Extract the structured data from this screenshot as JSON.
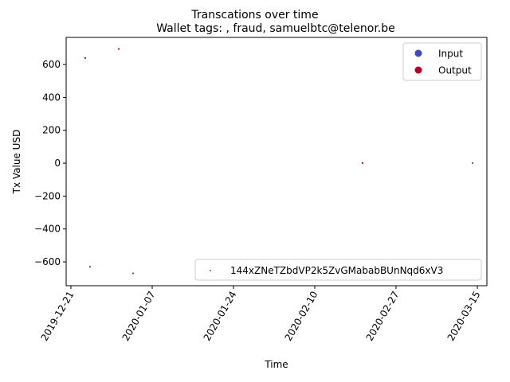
{
  "suptitle": "Transcations over time",
  "chart_data": {
    "type": "scatter",
    "title": "Wallet tags: , fraud, samuelbtc@telenor.be",
    "xlabel": "Time",
    "ylabel": "Tx Value USD",
    "x_type": "date",
    "xlim": [
      "2019-12-20",
      "2020-03-17"
    ],
    "ylim": [
      -745,
      765
    ],
    "x_ticks": [
      "2019-12-21",
      "2020-01-07",
      "2020-01-24",
      "2020-02-10",
      "2020-02-27",
      "2020-03-15"
    ],
    "y_ticks": [
      -600,
      -400,
      -200,
      0,
      200,
      400,
      600
    ],
    "grid": false,
    "series": [
      {
        "name": "Input",
        "color": "#3b4cc0",
        "points": [
          {
            "x": "2019-12-25",
            "y": -630
          },
          {
            "x": "2020-01-03",
            "y": -670
          },
          {
            "x": "2020-03-14",
            "y": 1
          }
        ]
      },
      {
        "name": "Output",
        "color": "#b40426",
        "points": [
          {
            "x": "2019-12-24",
            "y": 640
          },
          {
            "x": "2019-12-31",
            "y": 695
          },
          {
            "x": "2020-02-20",
            "y": 1
          }
        ]
      }
    ],
    "legends": [
      {
        "placement": "upper right",
        "entries": [
          {
            "label": "Input",
            "color": "#3b4cc0"
          },
          {
            "label": "Output",
            "color": "#b40426"
          }
        ]
      },
      {
        "placement": "lower right",
        "entries": [
          {
            "label": "144xZNeTZbdVP2k5ZvGMababBUnNqd6xV3",
            "color": "#1f77b4"
          }
        ]
      }
    ]
  }
}
